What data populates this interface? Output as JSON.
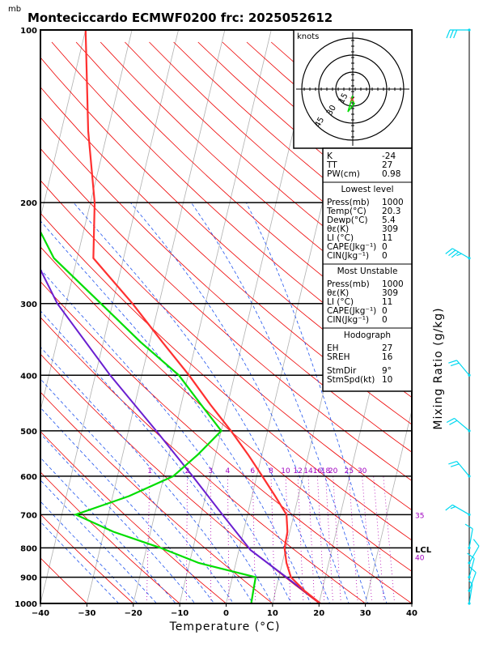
{
  "title": "Monteciccardo ECMWF0200  frc: 2025052612",
  "units_label": "mb",
  "chart_data": {
    "type": "skew-t",
    "xlabel": "Temperature (°C)",
    "right_label": "Mixing Ratio (g/kg)",
    "x_ticks": [
      -40,
      -30,
      -20,
      -10,
      0,
      10,
      20,
      30,
      40
    ],
    "p_ticks": [
      100,
      200,
      300,
      400,
      500,
      600,
      700,
      800,
      900,
      1000
    ],
    "temperature_profile": [
      {
        "p": 1000,
        "t": 20.3
      },
      {
        "p": 950,
        "t": 16.2
      },
      {
        "p": 900,
        "t": 12.6
      },
      {
        "p": 850,
        "t": 10.9
      },
      {
        "p": 800,
        "t": 9.7
      },
      {
        "p": 750,
        "t": 9.5
      },
      {
        "p": 700,
        "t": 8.4
      },
      {
        "p": 650,
        "t": 5.0
      },
      {
        "p": 600,
        "t": 1.2
      },
      {
        "p": 550,
        "t": -3.0
      },
      {
        "p": 500,
        "t": -7.9
      },
      {
        "p": 450,
        "t": -13.7
      },
      {
        "p": 400,
        "t": -19.8
      },
      {
        "p": 350,
        "t": -27.3
      },
      {
        "p": 300,
        "t": -35.7
      },
      {
        "p": 250,
        "t": -46.5
      },
      {
        "p": 200,
        "t": -49.1
      },
      {
        "p": 150,
        "t": -54.2
      },
      {
        "p": 100,
        "t": -60.0
      }
    ],
    "dewpoint_profile": [
      {
        "p": 1000,
        "t": 5.4
      },
      {
        "p": 950,
        "t": 5.2
      },
      {
        "p": 900,
        "t": 5.0
      },
      {
        "p": 850,
        "t": -8.0
      },
      {
        "p": 800,
        "t": -17.0
      },
      {
        "p": 750,
        "t": -28.0
      },
      {
        "p": 700,
        "t": -37.0
      },
      {
        "p": 650,
        "t": -26.5
      },
      {
        "p": 600,
        "t": -18.0
      },
      {
        "p": 550,
        "t": -13.8
      },
      {
        "p": 500,
        "t": -10.0
      },
      {
        "p": 450,
        "t": -15.7
      },
      {
        "p": 400,
        "t": -22.0
      },
      {
        "p": 350,
        "t": -32.0
      },
      {
        "p": 300,
        "t": -42.5
      },
      {
        "p": 250,
        "t": -55.0
      },
      {
        "p": 200,
        "t": -64.0
      },
      {
        "p": 150,
        "t": -76.0
      },
      {
        "p": 100,
        "t": -87.0
      }
    ],
    "parcel_profile": [
      {
        "p": 1000,
        "t": 20.3
      },
      {
        "p": 900,
        "t": 11.6
      },
      {
        "p": 807,
        "t": 2.5
      },
      {
        "p": 700,
        "t": -5.4
      },
      {
        "p": 600,
        "t": -13.8
      },
      {
        "p": 500,
        "t": -24.0
      },
      {
        "p": 400,
        "t": -36.8
      },
      {
        "p": 300,
        "t": -51.9
      },
      {
        "p": 200,
        "t": -68.0
      },
      {
        "p": 150,
        "t": -75.0
      },
      {
        "p": 120,
        "t": -79.5
      }
    ],
    "lcl_label": "LCL",
    "lcl_p": 807,
    "mixing_ratio_labels": [
      "1",
      "2",
      "3",
      "4",
      "6",
      "8",
      "10",
      "12",
      "14",
      "16",
      "18",
      "20",
      "25",
      "30",
      "35",
      "40"
    ],
    "hodograph": {
      "label": "knots",
      "rings": [
        "15",
        "30",
        "45"
      ]
    },
    "wind_barbs": [
      {
        "p": 1000,
        "dir": 9,
        "spd": 5
      },
      {
        "p": 950,
        "dir": 20,
        "spd": 8
      },
      {
        "p": 900,
        "dir": 15,
        "spd": 10
      },
      {
        "p": 850,
        "dir": 30,
        "spd": 8
      },
      {
        "p": 800,
        "dir": 10,
        "spd": 10
      },
      {
        "p": 700,
        "dir": 300,
        "spd": 15
      },
      {
        "p": 600,
        "dir": 320,
        "spd": 20
      },
      {
        "p": 500,
        "dir": 310,
        "spd": 20
      },
      {
        "p": 400,
        "dir": 320,
        "spd": 20
      },
      {
        "p": 250,
        "dir": 300,
        "spd": 35
      },
      {
        "p": 100,
        "dir": 270,
        "spd": 30
      }
    ]
  },
  "stats": {
    "top": [
      {
        "label": "K",
        "value": "-24"
      },
      {
        "label": "TT",
        "value": "27"
      },
      {
        "label": "PW(cm)",
        "value": "0.98"
      }
    ],
    "lowest_title": "Lowest level",
    "lowest": [
      {
        "label": "Press(mb)",
        "value": "1000"
      },
      {
        "label": "Temp(°C)",
        "value": "20.3"
      },
      {
        "label": "Dewp(°C)",
        "value": "5.4"
      },
      {
        "label": "θε(K)",
        "value": "309"
      },
      {
        "label": "LI (°C)",
        "value": "11"
      },
      {
        "label": "CAPE(Jkg⁻¹)",
        "value": "0"
      },
      {
        "label": "CIN(Jkg⁻¹)",
        "value": "0"
      }
    ],
    "unstable_title": "Most Unstable",
    "unstable": [
      {
        "label": "Press(mb)",
        "value": "1000"
      },
      {
        "label": "θε(K)",
        "value": "309"
      },
      {
        "label": "LI (°C)",
        "value": "11"
      },
      {
        "label": "CAPE(Jkg⁻¹)",
        "value": "0"
      },
      {
        "label": "CIN(Jkg⁻¹)",
        "value": "0"
      }
    ],
    "hodo_title": "Hodograph",
    "hodo": [
      {
        "label": "EH",
        "value": "27"
      },
      {
        "label": "SREH",
        "value": "16"
      },
      {
        "label": "StmDir",
        "value": "9°"
      },
      {
        "label": "StmSpd(kt)",
        "value": "10"
      }
    ]
  },
  "colors": {
    "temperature": "#ff3030",
    "dewpoint": "#00dd00",
    "parcel": "#6a1fd0",
    "isotherm": "#b0b0b0",
    "dry_adiabat": "#ee0000",
    "moist_adiabat": "#2255ee",
    "mixing_ratio": "#b000b0",
    "barb": "#00d8f0"
  }
}
